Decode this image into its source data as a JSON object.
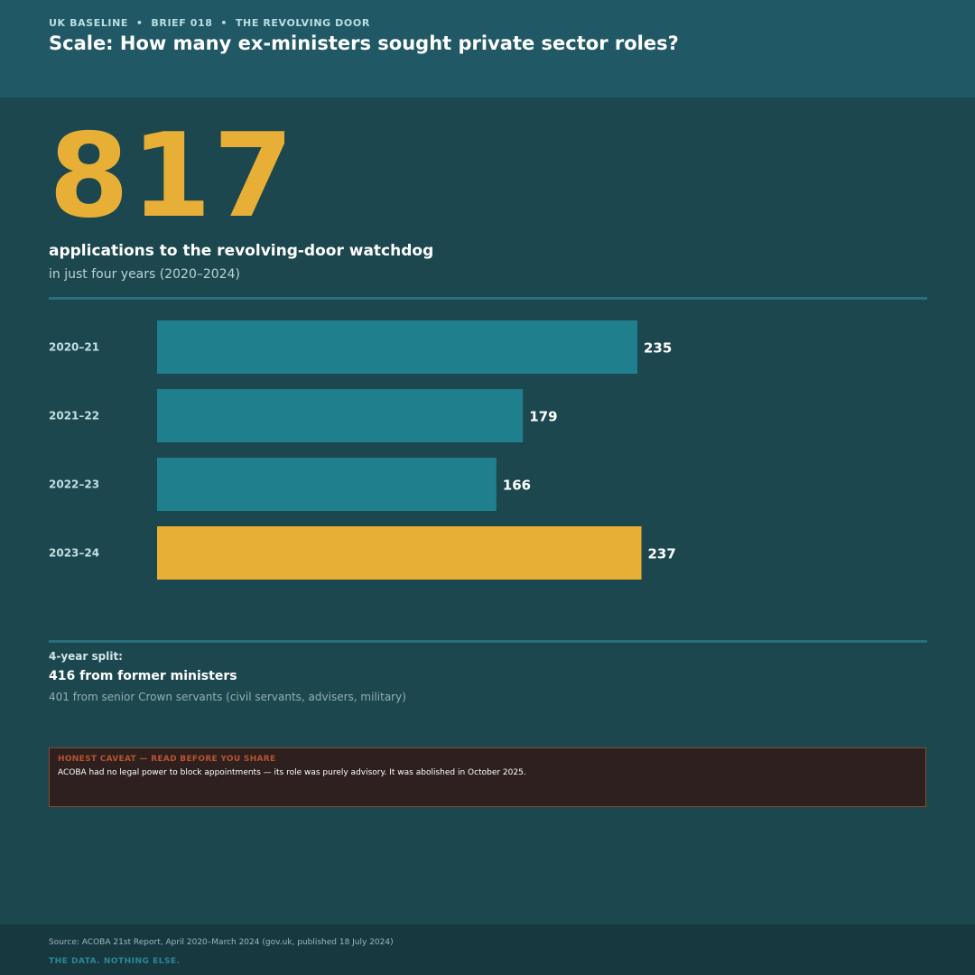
{
  "header": {
    "kicker": "UK BASELINE  •  BRIEF 018  •  THE REVOLVING DOOR",
    "title": "Scale: How many ex-ministers sought private sector roles?"
  },
  "hero": {
    "number": "817",
    "headline": "applications to the revolving-door watchdog",
    "subhead": "in just four years (2020–2024)"
  },
  "chart_data": {
    "type": "bar",
    "orientation": "horizontal",
    "categories": [
      "2020–21",
      "2021–22",
      "2022–23",
      "2023–24"
    ],
    "values": [
      235,
      179,
      166,
      237
    ],
    "highlight_index": 3,
    "xlim": [
      0,
      345
    ],
    "grid": false,
    "colors": {
      "default": "#207f8d",
      "highlight": "#e8af37"
    }
  },
  "split": {
    "label": "4-year split:",
    "main": "416 from former ministers",
    "sub": "401 from senior Crown servants (civil servants, advisers, military)"
  },
  "caveat": {
    "label": "HONEST CAVEAT — READ BEFORE YOU SHARE",
    "text": "ACOBA had no legal power to block appointments — its role was purely advisory. It was abolished in October 2025."
  },
  "footer": {
    "source": "Source: ACOBA 21st Report, April 2020–March 2024 (gov.uk, published 18 July 2024)",
    "tagline": "THE DATA. NOTHING ELSE."
  },
  "colors": {
    "background": "#1d474e",
    "header": "#215865",
    "accent": "#e8af37",
    "bar": "#207f8d",
    "caveat_border": "#8a4a2c"
  }
}
